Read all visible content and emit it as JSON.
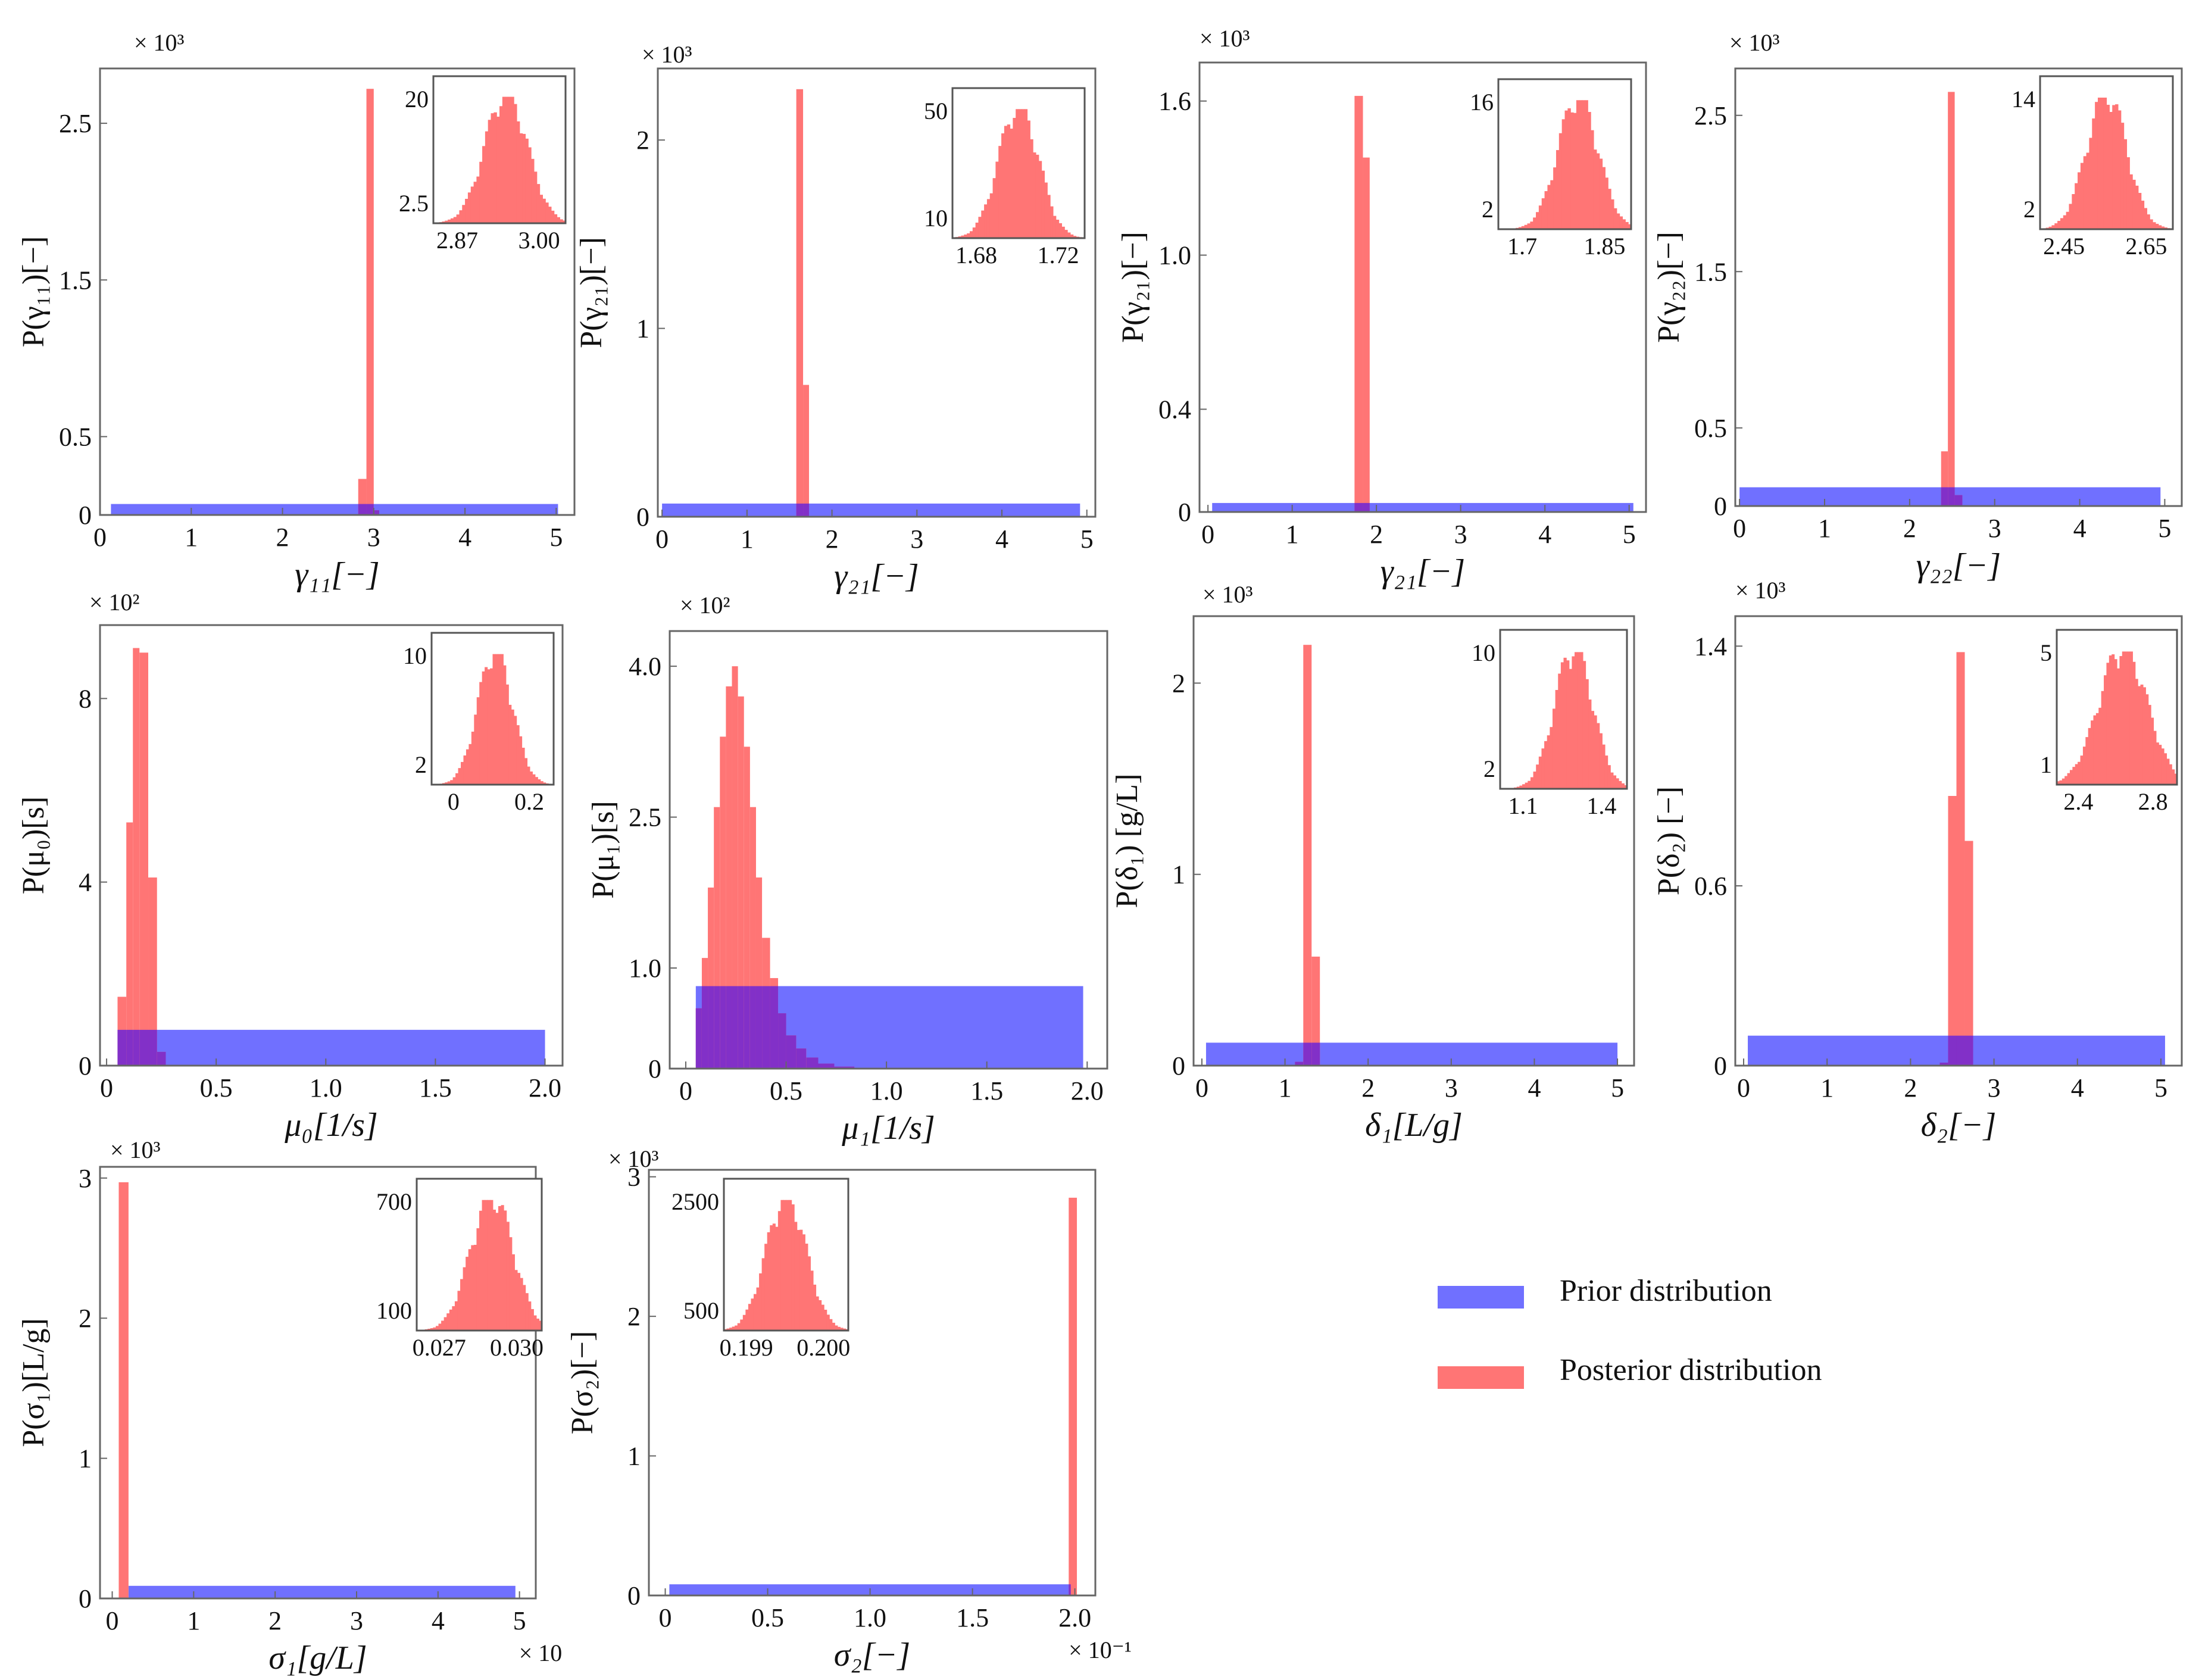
{
  "colors": {
    "prior": "#7070ff",
    "posterior": "#ff7575",
    "overlap": "#8230c8"
  },
  "legend": {
    "prior_label": "Prior distribution",
    "posterior_label": "Posterior distribution"
  },
  "chart_data": [
    {
      "id": "p1",
      "type": "bar",
      "xlabel": "γ₁₁[−]",
      "ylabel": "P(γ₁₁)[−]",
      "y_multiplier": "× 10³",
      "xlim": [
        0,
        5.2
      ],
      "ylim": [
        0,
        2.85
      ],
      "xticks": [
        {
          "v": 0,
          "label": "0"
        },
        {
          "v": 1,
          "label": "1"
        },
        {
          "v": 2,
          "label": "2"
        },
        {
          "v": 3,
          "label": "3"
        },
        {
          "v": 4,
          "label": "4"
        },
        {
          "v": 5,
          "label": "5"
        }
      ],
      "yticks": [
        {
          "v": 0,
          "label": "0"
        },
        {
          "v": 0.5,
          "label": "0.5"
        },
        {
          "v": 1.5,
          "label": "1.5"
        },
        {
          "v": 2.5,
          "label": "2.5"
        }
      ],
      "prior": {
        "x0": 0.12,
        "x1": 5.02,
        "h": 0.07
      },
      "posterior": [
        {
          "x0": 2.83,
          "x1": 2.92,
          "h": 0.23
        },
        {
          "x0": 2.92,
          "x1": 3.0,
          "h": 2.72
        },
        {
          "x0": 3.0,
          "x1": 3.06,
          "h": 0.03
        }
      ],
      "inset": {
        "xticks": [
          "2.87",
          "3.00"
        ],
        "yticks": [
          "20",
          "2.5"
        ],
        "center": 0.55,
        "spread": 0.16
      }
    },
    {
      "id": "p2",
      "type": "bar",
      "xlabel": "γ₂₁[−]",
      "ylabel": "P(γ₂₁)[−]",
      "y_multiplier": "× 10³",
      "xlim": [
        -0.05,
        5.1
      ],
      "ylim": [
        0,
        2.38
      ],
      "xticks": [
        {
          "v": 0,
          "label": "0"
        },
        {
          "v": 1,
          "label": "1"
        },
        {
          "v": 2,
          "label": "2"
        },
        {
          "v": 3,
          "label": "3"
        },
        {
          "v": 4,
          "label": "4"
        },
        {
          "v": 5,
          "label": "5"
        }
      ],
      "yticks": [
        {
          "v": 0,
          "label": "0"
        },
        {
          "v": 1,
          "label": "1"
        },
        {
          "v": 2,
          "label": "2"
        }
      ],
      "prior": {
        "x0": 0.0,
        "x1": 4.92,
        "h": 0.07
      },
      "posterior": [
        {
          "x0": 1.58,
          "x1": 1.66,
          "h": 2.27
        },
        {
          "x0": 1.66,
          "x1": 1.73,
          "h": 0.7
        }
      ],
      "inset": {
        "xticks": [
          "1.68",
          "1.72"
        ],
        "yticks": [
          "50",
          "10"
        ],
        "center": 0.5,
        "spread": 0.15
      }
    },
    {
      "id": "p3",
      "type": "bar",
      "xlabel": "γ₂₁[−]",
      "ylabel": "P(γ₂₁)[−]",
      "y_multiplier": "× 10³",
      "xlim": [
        -0.1,
        5.2
      ],
      "ylim": [
        0,
        1.75
      ],
      "xticks": [
        {
          "v": 0,
          "label": "0"
        },
        {
          "v": 1,
          "label": "1"
        },
        {
          "v": 2,
          "label": "2"
        },
        {
          "v": 3,
          "label": "3"
        },
        {
          "v": 4,
          "label": "4"
        },
        {
          "v": 5,
          "label": "5"
        }
      ],
      "yticks": [
        {
          "v": 0,
          "label": "0"
        },
        {
          "v": 0.4,
          "label": "0.4"
        },
        {
          "v": 1.0,
          "label": "1.0"
        },
        {
          "v": 1.6,
          "label": "1.6"
        }
      ],
      "prior": {
        "x0": 0.05,
        "x1": 5.05,
        "h": 0.035
      },
      "posterior": [
        {
          "x0": 1.74,
          "x1": 1.84,
          "h": 1.62
        },
        {
          "x0": 1.84,
          "x1": 1.92,
          "h": 1.38
        }
      ],
      "inset": {
        "xticks": [
          "1.7",
          "1.85"
        ],
        "yticks": [
          "16",
          "2"
        ],
        "center": 0.6,
        "spread": 0.15
      }
    },
    {
      "id": "p4",
      "type": "bar",
      "xlabel": "γ₂₂[−]",
      "ylabel": "P(γ₂₂)[−]",
      "y_multiplier": "× 10³",
      "xlim": [
        -0.05,
        5.2
      ],
      "ylim": [
        0,
        2.8
      ],
      "xticks": [
        {
          "v": 0,
          "label": "0"
        },
        {
          "v": 1,
          "label": "1"
        },
        {
          "v": 2,
          "label": "2"
        },
        {
          "v": 3,
          "label": "3"
        },
        {
          "v": 4,
          "label": "4"
        },
        {
          "v": 5,
          "label": "5"
        }
      ],
      "yticks": [
        {
          "v": 0,
          "label": "0"
        },
        {
          "v": 0.5,
          "label": "0.5"
        },
        {
          "v": 1.5,
          "label": "1.5"
        },
        {
          "v": 2.5,
          "label": "2.5"
        }
      ],
      "prior": {
        "x0": 0.0,
        "x1": 4.95,
        "h": 0.12
      },
      "posterior": [
        {
          "x0": 2.37,
          "x1": 2.45,
          "h": 0.35
        },
        {
          "x0": 2.45,
          "x1": 2.53,
          "h": 2.65
        },
        {
          "x0": 2.53,
          "x1": 2.62,
          "h": 0.07
        }
      ],
      "inset": {
        "xticks": [
          "2.45",
          "2.65"
        ],
        "yticks": [
          "14",
          "2"
        ],
        "center": 0.5,
        "spread": 0.15
      }
    },
    {
      "id": "p5",
      "type": "bar",
      "xlabel": "μ₀[1/s]",
      "ylabel": "P(μ₀)[s]",
      "y_multiplier": "× 10²",
      "xlim": [
        -0.03,
        2.08
      ],
      "ylim": [
        0,
        9.6
      ],
      "xticks": [
        {
          "v": 0,
          "label": "0"
        },
        {
          "v": 0.5,
          "label": "0.5"
        },
        {
          "v": 1.0,
          "label": "1.0"
        },
        {
          "v": 1.5,
          "label": "1.5"
        },
        {
          "v": 2.0,
          "label": "2.0"
        }
      ],
      "yticks": [
        {
          "v": 0,
          "label": "0"
        },
        {
          "v": 4,
          "label": "4"
        },
        {
          "v": 8,
          "label": "8"
        }
      ],
      "prior": {
        "x0": 0.05,
        "x1": 2.0,
        "h": 0.78
      },
      "posterior": [
        {
          "x0": 0.05,
          "x1": 0.09,
          "h": 1.5
        },
        {
          "x0": 0.09,
          "x1": 0.12,
          "h": 5.3
        },
        {
          "x0": 0.12,
          "x1": 0.15,
          "h": 9.1
        },
        {
          "x0": 0.15,
          "x1": 0.19,
          "h": 9.0
        },
        {
          "x0": 0.19,
          "x1": 0.23,
          "h": 4.1
        },
        {
          "x0": 0.23,
          "x1": 0.27,
          "h": 0.3
        }
      ],
      "inset": {
        "xticks": [
          "0",
          "0.2"
        ],
        "yticks": [
          "10",
          "2"
        ],
        "center": 0.52,
        "spread": 0.14
      }
    },
    {
      "id": "p6",
      "type": "bar",
      "xlabel": "μ₁[1/s]",
      "ylabel": "P(μ₁)[s]",
      "y_multiplier": "× 10²",
      "xlim": [
        -0.08,
        2.1
      ],
      "ylim": [
        0,
        4.35
      ],
      "xticks": [
        {
          "v": 0,
          "label": "0"
        },
        {
          "v": 0.5,
          "label": "0.5"
        },
        {
          "v": 1.0,
          "label": "1.0"
        },
        {
          "v": 1.5,
          "label": "1.5"
        },
        {
          "v": 2.0,
          "label": "2.0"
        }
      ],
      "yticks": [
        {
          "v": 0,
          "label": "0"
        },
        {
          "v": 1.0,
          "label": "1.0"
        },
        {
          "v": 2.5,
          "label": "2.5"
        },
        {
          "v": 4.0,
          "label": "4.0"
        }
      ],
      "prior": {
        "x0": 0.05,
        "x1": 1.98,
        "h": 0.82
      },
      "posterior": [
        {
          "x0": 0.05,
          "x1": 0.08,
          "h": 0.6
        },
        {
          "x0": 0.08,
          "x1": 0.11,
          "h": 1.1
        },
        {
          "x0": 0.11,
          "x1": 0.14,
          "h": 1.8
        },
        {
          "x0": 0.14,
          "x1": 0.17,
          "h": 2.6
        },
        {
          "x0": 0.17,
          "x1": 0.2,
          "h": 3.3
        },
        {
          "x0": 0.2,
          "x1": 0.23,
          "h": 3.8
        },
        {
          "x0": 0.23,
          "x1": 0.26,
          "h": 4.0
        },
        {
          "x0": 0.26,
          "x1": 0.29,
          "h": 3.7
        },
        {
          "x0": 0.29,
          "x1": 0.32,
          "h": 3.2
        },
        {
          "x0": 0.32,
          "x1": 0.35,
          "h": 2.6
        },
        {
          "x0": 0.35,
          "x1": 0.38,
          "h": 1.9
        },
        {
          "x0": 0.38,
          "x1": 0.42,
          "h": 1.3
        },
        {
          "x0": 0.42,
          "x1": 0.46,
          "h": 0.9
        },
        {
          "x0": 0.46,
          "x1": 0.5,
          "h": 0.55
        },
        {
          "x0": 0.5,
          "x1": 0.55,
          "h": 0.33
        },
        {
          "x0": 0.55,
          "x1": 0.6,
          "h": 0.2
        },
        {
          "x0": 0.6,
          "x1": 0.66,
          "h": 0.11
        },
        {
          "x0": 0.66,
          "x1": 0.74,
          "h": 0.05
        },
        {
          "x0": 0.74,
          "x1": 0.84,
          "h": 0.02
        }
      ]
    },
    {
      "id": "p7",
      "type": "bar",
      "xlabel": "δ₁[L/g]",
      "ylabel": "P(δ₁) [g/L]",
      "y_multiplier": "× 10³",
      "xlim": [
        -0.1,
        5.2
      ],
      "ylim": [
        0,
        2.35
      ],
      "xticks": [
        {
          "v": 0,
          "label": "0"
        },
        {
          "v": 1,
          "label": "1"
        },
        {
          "v": 2,
          "label": "2"
        },
        {
          "v": 3,
          "label": "3"
        },
        {
          "v": 4,
          "label": "4"
        },
        {
          "v": 5,
          "label": "5"
        }
      ],
      "yticks": [
        {
          "v": 0,
          "label": "0"
        },
        {
          "v": 1,
          "label": "1"
        },
        {
          "v": 2,
          "label": "2"
        }
      ],
      "prior": {
        "x0": 0.05,
        "x1": 5.0,
        "h": 0.12
      },
      "posterior": [
        {
          "x0": 1.12,
          "x1": 1.22,
          "h": 0.02
        },
        {
          "x0": 1.22,
          "x1": 1.32,
          "h": 2.2
        },
        {
          "x0": 1.32,
          "x1": 1.42,
          "h": 0.57
        }
      ],
      "inset": {
        "xticks": [
          "1.1",
          "1.4"
        ],
        "yticks": [
          "10",
          "2"
        ],
        "center": 0.58,
        "spread": 0.15
      }
    },
    {
      "id": "p8",
      "type": "bar",
      "xlabel": "δ₂[−]",
      "ylabel": "P(δ₂) [−]",
      "y_multiplier": "× 10³",
      "xlim": [
        -0.1,
        5.25
      ],
      "ylim": [
        0,
        1.5
      ],
      "xticks": [
        {
          "v": 0,
          "label": "0"
        },
        {
          "v": 1,
          "label": "1"
        },
        {
          "v": 2,
          "label": "2"
        },
        {
          "v": 3,
          "label": "3"
        },
        {
          "v": 4,
          "label": "4"
        },
        {
          "v": 5,
          "label": "5"
        }
      ],
      "yticks": [
        {
          "v": 0,
          "label": "0"
        },
        {
          "v": 0.6,
          "label": "0.6"
        },
        {
          "v": 1.4,
          "label": "1.4"
        }
      ],
      "prior": {
        "x0": 0.05,
        "x1": 5.05,
        "h": 0.1
      },
      "posterior": [
        {
          "x0": 2.35,
          "x1": 2.45,
          "h": 0.01
        },
        {
          "x0": 2.45,
          "x1": 2.55,
          "h": 0.9
        },
        {
          "x0": 2.55,
          "x1": 2.65,
          "h": 1.38
        },
        {
          "x0": 2.65,
          "x1": 2.75,
          "h": 0.75
        }
      ],
      "inset": {
        "xticks": [
          "2.4",
          "2.8"
        ],
        "yticks": [
          "5",
          "1"
        ],
        "center": 0.55,
        "spread": 0.2
      }
    },
    {
      "id": "p9",
      "type": "bar",
      "xlabel": "σ₁[g/L]",
      "ylabel": "P(σ₁)[L/g]",
      "y_multiplier": "× 10³",
      "x_multiplier": "× 10",
      "xlim": [
        -0.15,
        5.2
      ],
      "ylim": [
        0,
        3.08
      ],
      "xticks": [
        {
          "v": 0,
          "label": "0"
        },
        {
          "v": 1,
          "label": "1"
        },
        {
          "v": 2,
          "label": "2"
        },
        {
          "v": 3,
          "label": "3"
        },
        {
          "v": 4,
          "label": "4"
        },
        {
          "v": 5,
          "label": "5"
        }
      ],
      "yticks": [
        {
          "v": 0,
          "label": "0"
        },
        {
          "v": 1,
          "label": "1"
        },
        {
          "v": 2,
          "label": "2"
        },
        {
          "v": 3,
          "label": "3"
        }
      ],
      "prior": {
        "x0": 0.2,
        "x1": 4.95,
        "h": 0.09
      },
      "posterior": [
        {
          "x0": 0.08,
          "x1": 0.2,
          "h": 2.97
        }
      ],
      "inset": {
        "xticks": [
          "0.027",
          "0.030"
        ],
        "yticks": [
          "700",
          "100"
        ],
        "center": 0.6,
        "spread": 0.17
      }
    },
    {
      "id": "p10",
      "type": "bar",
      "xlabel": "σ₂[−]",
      "ylabel": "P(σ₂)[−]",
      "y_multiplier": "× 10³",
      "x_multiplier": "× 10⁻¹",
      "xlim": [
        -0.08,
        2.1
      ],
      "ylim": [
        0,
        3.05
      ],
      "xticks": [
        {
          "v": 0,
          "label": "0"
        },
        {
          "v": 0.5,
          "label": "0.5"
        },
        {
          "v": 1.0,
          "label": "1.0"
        },
        {
          "v": 1.5,
          "label": "1.5"
        },
        {
          "v": 2.0,
          "label": "2.0"
        }
      ],
      "yticks": [
        {
          "v": 0,
          "label": "0"
        },
        {
          "v": 1,
          "label": "1"
        },
        {
          "v": 2,
          "label": "2"
        },
        {
          "v": 3,
          "label": "3"
        }
      ],
      "prior": {
        "x0": 0.02,
        "x1": 1.98,
        "h": 0.08
      },
      "posterior": [
        {
          "x0": 1.97,
          "x1": 2.01,
          "h": 2.85
        }
      ],
      "inset": {
        "xticks": [
          "0.199",
          "0.200"
        ],
        "yticks": [
          "2500",
          "500"
        ],
        "center": 0.5,
        "spread": 0.16
      }
    }
  ]
}
